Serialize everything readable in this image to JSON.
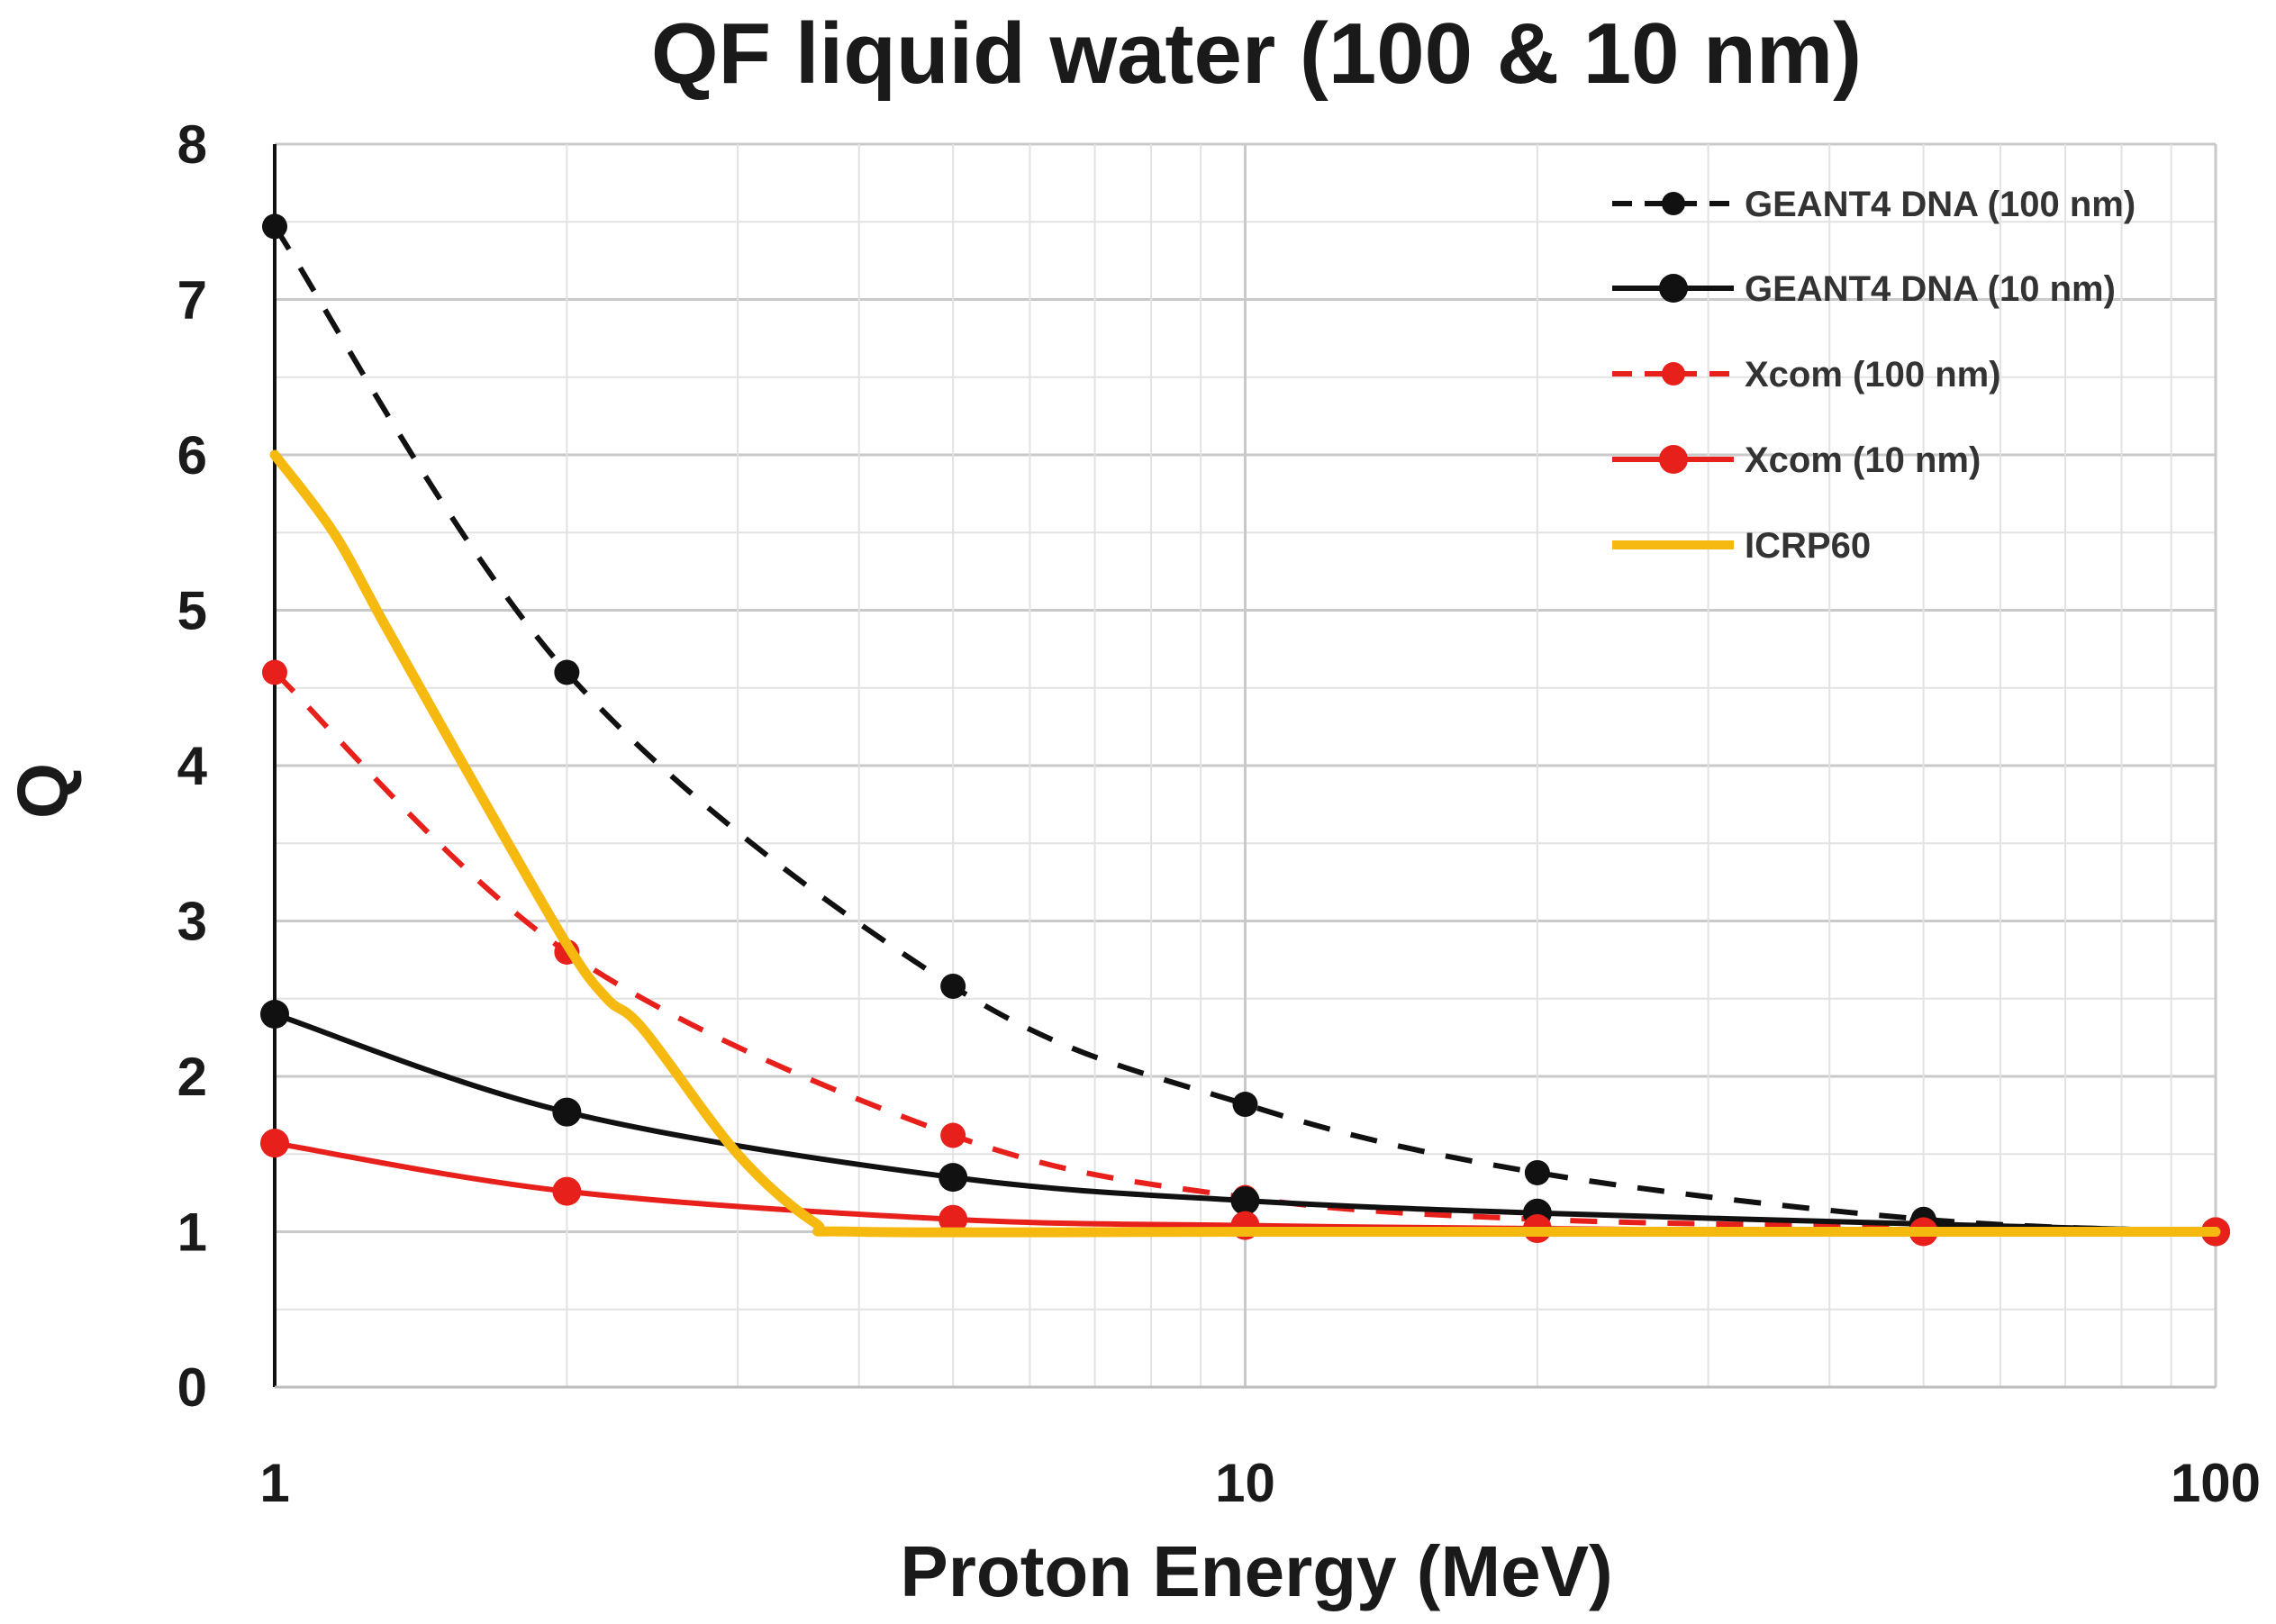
{
  "chart_data": {
    "type": "line",
    "title": "QF liquid water (100 & 10 nm)",
    "xlabel": "Proton Energy (MeV)",
    "ylabel": "Q",
    "xscale": "log",
    "xlim": [
      1,
      100
    ],
    "ylim": [
      0,
      8
    ],
    "xticks": [
      1,
      10,
      100
    ],
    "xtick_labels": [
      "1",
      "10",
      "100"
    ],
    "yticks": [
      0,
      1,
      2,
      3,
      4,
      5,
      6,
      7,
      8
    ],
    "ytick_labels": [
      "0",
      "1",
      "2",
      "3",
      "4",
      "5",
      "6",
      "7",
      "8"
    ],
    "grid": true,
    "legend_position": "top-right",
    "series": [
      {
        "name": "GEANT4 DNA (100 nm)",
        "color": "#111111",
        "dash": true,
        "marker": "small",
        "x": [
          1,
          2,
          5,
          10,
          20,
          50,
          100
        ],
        "y": [
          7.47,
          4.6,
          2.58,
          1.82,
          1.38,
          1.08,
          1.0
        ]
      },
      {
        "name": "GEANT4 DNA (10 nm)",
        "color": "#111111",
        "dash": false,
        "marker": "large",
        "x": [
          1,
          2,
          5,
          10,
          20,
          50,
          100
        ],
        "y": [
          2.4,
          1.77,
          1.35,
          1.2,
          1.12,
          1.05,
          1.0
        ]
      },
      {
        "name": "Xcom (100 nm)",
        "color": "#e8201c",
        "dash": true,
        "marker": "small",
        "x": [
          1,
          2,
          5,
          10,
          20,
          50,
          100
        ],
        "y": [
          4.6,
          2.8,
          1.62,
          1.22,
          1.08,
          1.03,
          1.0
        ]
      },
      {
        "name": "Xcom (10 nm)",
        "color": "#e8201c",
        "dash": false,
        "marker": "large",
        "x": [
          1,
          2,
          5,
          10,
          20,
          50,
          100
        ],
        "y": [
          1.57,
          1.26,
          1.08,
          1.04,
          1.02,
          1.0,
          1.0
        ]
      },
      {
        "name": "ICRP60",
        "color": "#f5b90f",
        "dash": false,
        "marker": "none",
        "x": [
          1,
          1.15,
          1.3,
          1.6,
          2.0,
          2.2,
          2.4,
          3.0,
          3.6,
          4.0,
          10,
          20,
          50,
          100
        ],
        "y": [
          6.0,
          5.5,
          4.9,
          3.9,
          2.85,
          2.5,
          2.3,
          1.5,
          1.06,
          1.0,
          1.0,
          1.0,
          1.0,
          1.0
        ]
      }
    ]
  }
}
